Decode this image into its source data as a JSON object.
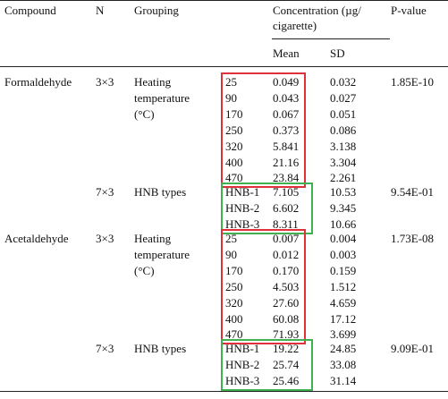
{
  "header": {
    "compound": "Compound",
    "n": "N",
    "grouping": "Grouping",
    "concentration_line1": "Concentration (µg/",
    "concentration_line2": "cigarette)",
    "pvalue": "P-value",
    "mean": "Mean",
    "sd": "SD"
  },
  "highlight_colors": {
    "red": "#e0303a",
    "green": "#3fb24f"
  },
  "blocks": [
    {
      "compound": "Formaldehyde",
      "n": "3×3",
      "grouping_line1": "Heating",
      "grouping_line2": "temperature",
      "grouping_line3": "(°C)",
      "pvalue": "1.85E-10",
      "highlight": "red",
      "rows": [
        {
          "group": "25",
          "mean": "0.049",
          "sd": "0.032"
        },
        {
          "group": "90",
          "mean": "0.043",
          "sd": "0.027"
        },
        {
          "group": "170",
          "mean": "0.067",
          "sd": "0.051"
        },
        {
          "group": "250",
          "mean": "0.373",
          "sd": "0.086"
        },
        {
          "group": "320",
          "mean": "5.841",
          "sd": "3.138"
        },
        {
          "group": "400",
          "mean": "21.16",
          "sd": "3.304"
        },
        {
          "group": "470",
          "mean": "23.84",
          "sd": "2.261"
        }
      ]
    },
    {
      "compound": "",
      "n": "7×3",
      "grouping_line1": "HNB types",
      "pvalue": "9.54E-01",
      "highlight": "green",
      "rows": [
        {
          "group": "HNB-1",
          "mean": "7.105",
          "sd": "10.53"
        },
        {
          "group": "HNB-2",
          "mean": "6.602",
          "sd": "9.345"
        },
        {
          "group": "HNB-3",
          "mean": "8.311",
          "sd": "10.66"
        }
      ]
    },
    {
      "compound": "Acetaldehyde",
      "n": "3×3",
      "grouping_line1": "Heating",
      "grouping_line2": "temperature",
      "grouping_line3": "(°C)",
      "pvalue": "1.73E-08",
      "highlight": "red",
      "rows": [
        {
          "group": "25",
          "mean": "0.007",
          "sd": "0.004"
        },
        {
          "group": "90",
          "mean": "0.012",
          "sd": "0.003"
        },
        {
          "group": "170",
          "mean": "0.170",
          "sd": "0.159"
        },
        {
          "group": "250",
          "mean": "4.503",
          "sd": "1.512"
        },
        {
          "group": "320",
          "mean": "27.60",
          "sd": "4.659"
        },
        {
          "group": "400",
          "mean": "60.08",
          "sd": "17.12"
        },
        {
          "group": "470",
          "mean": "71.93",
          "sd": "3.699"
        }
      ]
    },
    {
      "compound": "",
      "n": "7×3",
      "grouping_line1": "HNB types",
      "pvalue": "9.09E-01",
      "highlight": "green",
      "rows": [
        {
          "group": "HNB-1",
          "mean": "19.22",
          "sd": "24.85"
        },
        {
          "group": "HNB-2",
          "mean": "25.74",
          "sd": "33.08"
        },
        {
          "group": "HNB-3",
          "mean": "25.46",
          "sd": "31.14"
        }
      ]
    }
  ]
}
